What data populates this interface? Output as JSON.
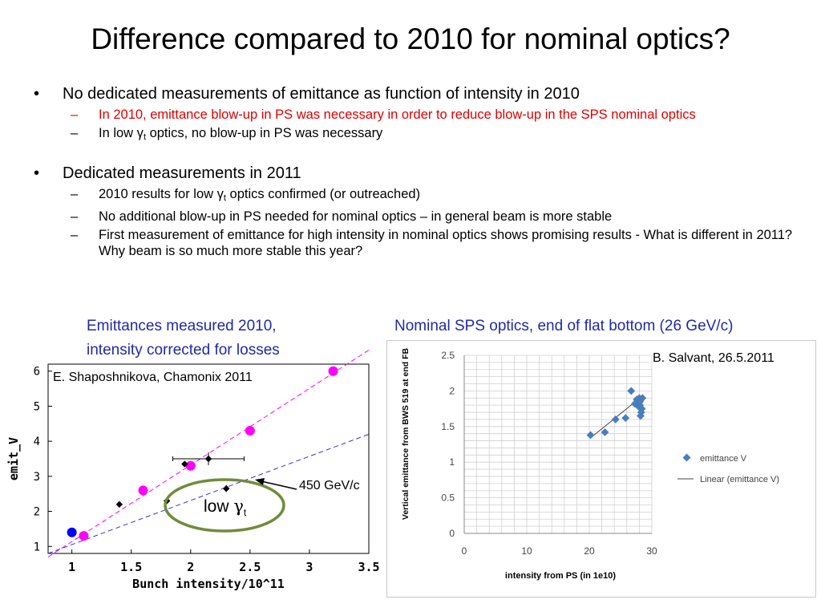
{
  "slide": {
    "title": "Difference compared to 2010 for nominal optics?",
    "bullet1": {
      "text": "No dedicated measurements of emittance as function of intensity in 2010",
      "sub1": "In 2010, emittance blow-up in PS was necessary in order to reduce blow-up in the SPS nominal optics",
      "sub2_pre": "In low γ",
      "sub2_subscript": "t",
      "sub2_post": " optics, no blow-up in PS was necessary"
    },
    "bullet2": {
      "text": "Dedicated measurements in 2011",
      "sub1_pre": "2010 results for low γ",
      "sub1_subscript": "t",
      "sub1_post": " optics confirmed (or outreached)",
      "sub2": "No additional blow-up in PS needed for nominal optics – in general beam is more stable",
      "sub3": "First measurement of emittance for high intensity in nominal optics shows promising results - What is different in 2011? Why beam is so much more stable this year?"
    },
    "bullet_glyph": "•",
    "dash_glyph": "–",
    "colors": {
      "caption": "#1f2aa8",
      "red": "#e00000"
    }
  },
  "left_figure": {
    "caption_line1": "Emittances measured 2010,",
    "caption_line2": "intensity corrected for losses",
    "credit": "E. Shaposhnikova, Chamonix 2011",
    "annotation_energy": "450 GeV/c",
    "annotation_low": "low ",
    "annotation_gamma": "γ",
    "annotation_sub": "t"
  },
  "right_figure": {
    "caption": "Nominal SPS optics, end of flat bottom (26 GeV/c)",
    "credit": "B. Salvant, 26.5.2011"
  },
  "chart_data": [
    {
      "type": "scatter",
      "xlabel": "Bunch intensity/10^11",
      "ylabel": "emit_V",
      "xlim": [
        0.8,
        3.5
      ],
      "ylim": [
        0.8,
        6.2
      ],
      "xticks": [
        "1",
        "1.5",
        "2",
        "2.5",
        "3",
        "3.5"
      ],
      "yticks": [
        "1",
        "2",
        "3",
        "4",
        "5",
        "6"
      ],
      "series": [
        {
          "color": "#ff00ff",
          "points": [
            [
              1.1,
              1.3
            ],
            [
              1.6,
              2.6
            ],
            [
              2.0,
              3.3
            ],
            [
              2.5,
              4.3
            ],
            [
              3.2,
              6.0
            ]
          ]
        },
        {
          "color": "#0000ff",
          "points": [
            [
              1.0,
              1.4
            ]
          ]
        },
        {
          "color": "#000000",
          "points": [
            [
              1.4,
              2.2
            ],
            [
              1.8,
              2.3
            ],
            [
              1.95,
              3.35
            ],
            [
              2.15,
              3.5
            ],
            [
              2.3,
              2.65
            ]
          ],
          "xerr": [
            0,
            0,
            0,
            0.3,
            0
          ],
          "yerr": [
            0,
            0.08,
            0,
            0.18,
            0.1
          ]
        }
      ],
      "fits": [
        {
          "color": "#ff00ff",
          "from": [
            0.8,
            0.7
          ],
          "to": [
            3.5,
            6.6
          ]
        },
        {
          "color": "#3333dd",
          "from": [
            0.8,
            0.8
          ],
          "to": [
            3.5,
            4.2
          ]
        }
      ]
    },
    {
      "type": "scatter",
      "xlabel": "intensity from PS (in 1e10)",
      "ylabel": "Vertical emittance from BWS 519 at end FB",
      "xlim": [
        0,
        30
      ],
      "ylim": [
        0,
        2.5
      ],
      "xticks": [
        "0",
        "10",
        "20",
        "30"
      ],
      "yticks": [
        "0",
        "0.5",
        "1",
        "1.5",
        "2",
        "2.5"
      ],
      "legend": [
        "emittance V",
        "Linear (emittance V)"
      ],
      "legend_position": "right",
      "series": [
        {
          "name": "emittance V",
          "color": "#4a7ebb",
          "points": [
            [
              20.2,
              1.38
            ],
            [
              22.5,
              1.42
            ],
            [
              24.2,
              1.6
            ],
            [
              25.8,
              1.62
            ],
            [
              26.7,
              2.0
            ],
            [
              27.3,
              1.82
            ],
            [
              27.6,
              1.88
            ],
            [
              27.9,
              1.78
            ],
            [
              28.0,
              1.9
            ],
            [
              28.1,
              1.85
            ],
            [
              28.2,
              1.65
            ],
            [
              28.3,
              1.7
            ],
            [
              28.4,
              1.75
            ],
            [
              28.5,
              1.9
            ],
            [
              28.1,
              1.8
            ]
          ]
        }
      ],
      "trendline": {
        "name": "Linear (emittance V)",
        "from": [
          20.2,
          1.34
        ],
        "to": [
          28.5,
          1.93
        ]
      }
    }
  ]
}
